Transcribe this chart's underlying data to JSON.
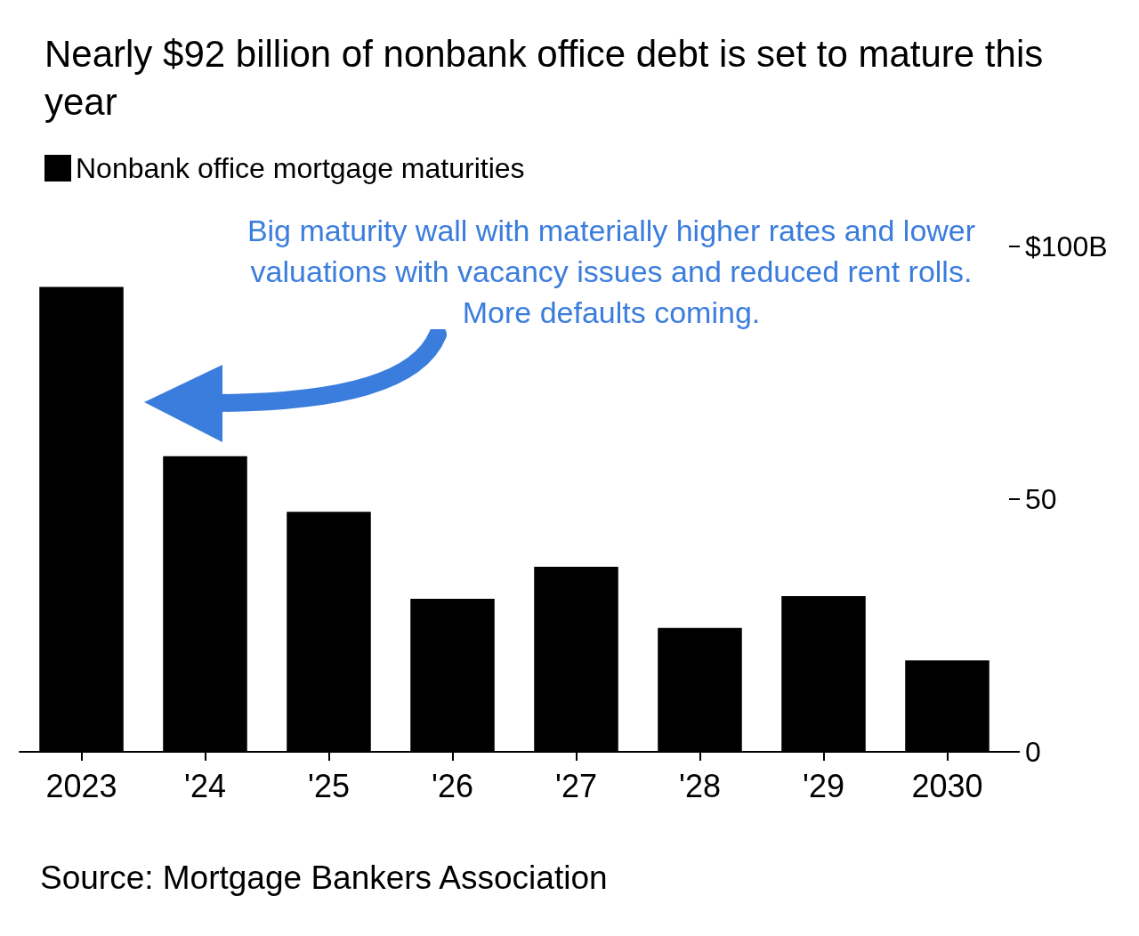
{
  "chart_data": {
    "type": "bar",
    "title": "Nearly $92 billion of nonbank office debt is set to mature this year",
    "categories": [
      "2023",
      "'24",
      "'25",
      "'26",
      "'27",
      "'28",
      "'29",
      "2030"
    ],
    "series": [
      {
        "name": "Nonbank office mortgage maturities",
        "color": "#000000",
        "values": [
          92,
          58.5,
          47.5,
          30.3,
          36.6,
          24.5,
          30.8,
          18.1
        ]
      }
    ],
    "ylim": [
      0,
      100
    ],
    "yticks": [
      0,
      50,
      {
        "value": 100,
        "label": "$100B"
      }
    ],
    "grid": false,
    "legend": "top left",
    "annotations": [
      "Big maturity wall with materially higher rates and lower valuations with vacancy issues and reduced rent rolls. More defaults coming.",
      "Source: Mortgage Bankers Association"
    ]
  }
}
